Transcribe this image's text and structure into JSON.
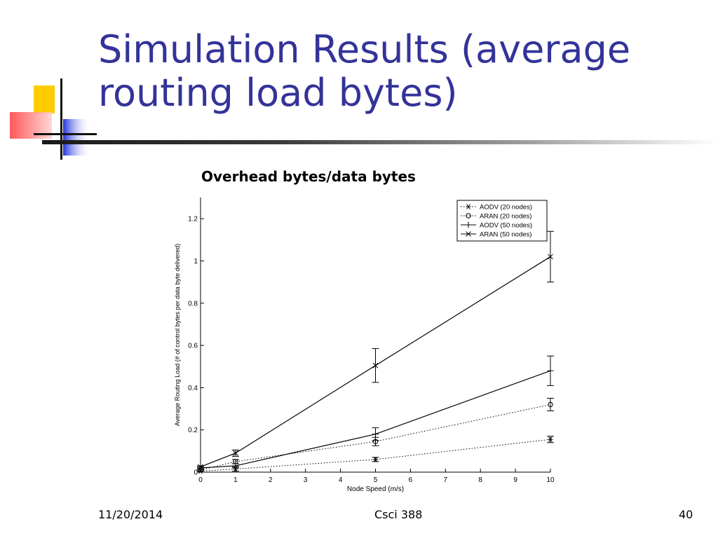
{
  "slide": {
    "title": "Simulation Results (average routing load bytes)",
    "caption": "Overhead bytes/data bytes"
  },
  "footer": {
    "date": "11/20/2014",
    "course": "Csci 388",
    "page": "40"
  },
  "chart_data": {
    "type": "line",
    "title": "",
    "xlabel": "Node Speed (m/s)",
    "ylabel": "Average Routing Load (# of control bytes per data byte delivered)",
    "xlim": [
      0,
      10
    ],
    "ylim": [
      0,
      1.3
    ],
    "xticks": [
      "0",
      "1",
      "2",
      "3",
      "4",
      "5",
      "6",
      "7",
      "8",
      "9",
      "10"
    ],
    "yticks": [
      "0",
      "0.2",
      "0.4",
      "0.6",
      "0.8",
      "1",
      "1.2"
    ],
    "x": [
      0,
      1,
      5,
      10
    ],
    "legend_position": "top-right",
    "grid": false,
    "series": [
      {
        "name": "AODV (20 nodes)",
        "style": "dotted",
        "marker": "asterisk",
        "values": [
          0.005,
          0.015,
          0.06,
          0.155
        ],
        "errors": [
          0.005,
          0.01,
          0.01,
          0.015
        ]
      },
      {
        "name": "ARAN (20 nodes)",
        "style": "dotted",
        "marker": "circle",
        "values": [
          0.01,
          0.05,
          0.145,
          0.32
        ],
        "errors": [
          0.005,
          0.01,
          0.02,
          0.03
        ]
      },
      {
        "name": "AODV (50 nodes)",
        "style": "solid",
        "marker": "plus",
        "values": [
          0.02,
          0.03,
          0.18,
          0.48
        ],
        "errors": [
          0.005,
          0.01,
          0.03,
          0.07
        ]
      },
      {
        "name": "ARAN (50 nodes)",
        "style": "solid",
        "marker": "x",
        "values": [
          0.025,
          0.09,
          0.505,
          1.02
        ],
        "errors": [
          0.005,
          0.015,
          0.08,
          0.12
        ]
      }
    ]
  }
}
